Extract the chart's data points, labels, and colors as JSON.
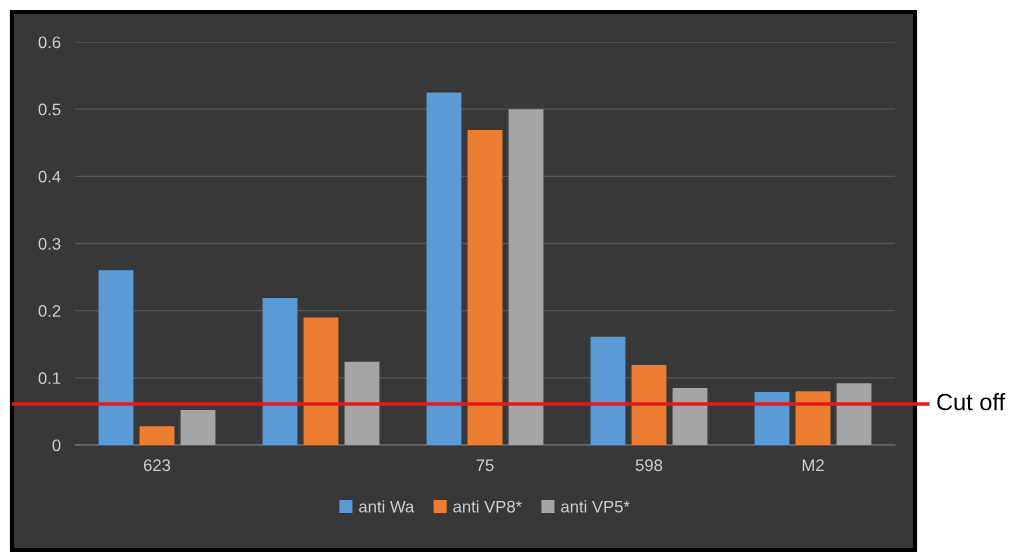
{
  "chart_data": {
    "type": "bar",
    "categories": [
      "623",
      null,
      "75",
      "598",
      "M2"
    ],
    "series": [
      {
        "name": "anti Wa",
        "color": "#5b9bd5",
        "values": [
          0.26,
          0.219,
          0.525,
          0.161,
          0.079
        ]
      },
      {
        "name": "anti VP8*",
        "color": "#ed7d31",
        "values": [
          0.028,
          0.19,
          0.469,
          0.119,
          0.08
        ]
      },
      {
        "name": "anti VP5*",
        "color": "#a5a5a5",
        "values": [
          0.052,
          0.124,
          0.5,
          0.085,
          0.092
        ]
      }
    ],
    "ylim": [
      0,
      0.6
    ],
    "yticks": [
      {
        "value": 0,
        "label": "0"
      },
      0.1,
      0.2,
      0.3,
      0.4,
      0.5,
      0.6
    ],
    "grid": "y",
    "legend": "bottom",
    "ref_lines": [
      {
        "axis": "y",
        "value": 0.061,
        "label": "Cut off",
        "color": "#e31a1c",
        "line_style": "solid"
      }
    ]
  }
}
